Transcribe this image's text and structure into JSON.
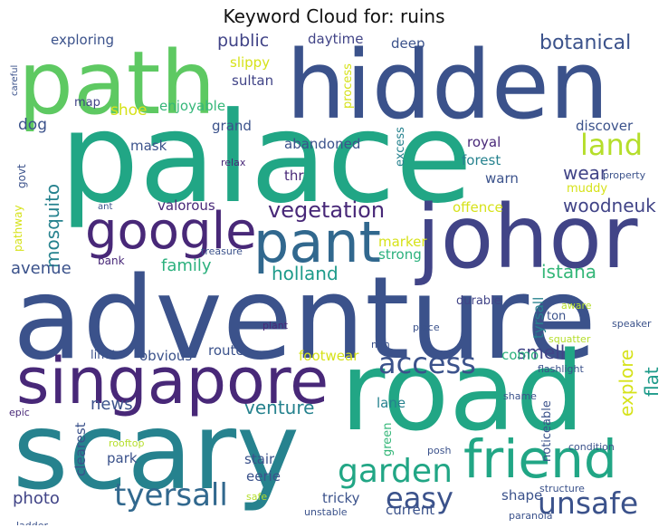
{
  "title": "Keyword Cloud for: ruins",
  "palette": {
    "teal": "#21a685",
    "tealB": "#1e9b8a",
    "blue": "#31688e",
    "slate": "#3b528b",
    "indigo": "#414487",
    "purple": "#482878",
    "deep": "#440154",
    "cyan": "#26828e",
    "lime": "#b5de2b",
    "yellow": "#d6e21a",
    "green": "#5ec962",
    "green2": "#35b779",
    "mint": "#2cb17e"
  },
  "words": {
    "palace": "palace",
    "adventure": "adventure",
    "hidden": "hidden",
    "path": "path",
    "road": "road",
    "scary": "scary",
    "singapore": "singapore",
    "johor": "johor",
    "pant": "pant",
    "google": "google",
    "friend": "friend",
    "garden": "garden",
    "tyersall": "tyersall",
    "unsafe": "unsafe",
    "easy": "easy",
    "access": "access",
    "land": "land",
    "botanical": "botanical",
    "vegetation": "vegetation",
    "holland": "holland",
    "mosquito": "mosquito",
    "explore": "explore",
    "exploring": "exploring",
    "public": "public",
    "daytime": "daytime",
    "deep": "deep",
    "sultan": "sultan",
    "slippy": "slippy",
    "process": "process",
    "map": "map",
    "shoe": "shoe",
    "enjoyable": "enjoyable",
    "grand": "grand",
    "mask": "mask",
    "abandoned": "abandoned",
    "royal": "royal",
    "forest": "forest",
    "warn": "warn",
    "excess": "excess",
    "thr": "thr",
    "relax": "relax",
    "dog": "dog",
    "govt": "govt",
    "smell": "smell",
    "wear": "wear",
    "woodneuk": "woodneuk",
    "offence": "offence",
    "muddy": "muddy",
    "property": "property",
    "valorous": "valorous",
    "ant": "ant",
    "pathway": "pathway",
    "family": "family",
    "marker": "marker",
    "strong": "strong",
    "istana": "istana",
    "treasure": "treasure",
    "avenue": "avenue",
    "bank": "bank",
    "discover": "discover",
    "durable": "durable",
    "aware": "aware",
    "ton": "ton",
    "speaker": "speaker",
    "squatter": "squatter",
    "flashlight": "flashlight",
    "plant": "plant",
    "piece": "piece",
    "min": "min",
    "limit": "limit",
    "obvious": "obvious",
    "route": "route",
    "footwear": "footwear",
    "como": "como",
    "tyrsall": "tyrsall",
    "flat": "flat",
    "news": "news",
    "venture": "venture",
    "lane": "lane",
    "noticeable": "noticeable",
    "shame": "shame",
    "epic": "epic",
    "clearest": "clearest",
    "rooftop": "rooftop",
    "park": "park",
    "stair": "stair",
    "eerie": "eerie",
    "green": "green",
    "posh": "posh",
    "condition": "condition",
    "photo": "photo",
    "shape": "shape",
    "structure": "structure",
    "ladder": "ladder",
    "safe": "safe",
    "tricky": "tricky",
    "current": "current",
    "unstable": "unstable",
    "paranoia": "paranoia",
    "careful": "careful"
  }
}
